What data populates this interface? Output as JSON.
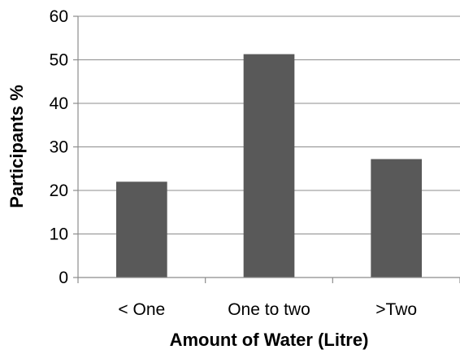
{
  "chart_data": {
    "type": "bar",
    "title": "",
    "xlabel": "Amount of Water (Litre)",
    "ylabel": "Participants %",
    "categories": [
      "< One",
      "One to two",
      ">Two"
    ],
    "values": [
      22,
      51.3,
      27.2
    ],
    "ylim": [
      0,
      60
    ],
    "yticks": [
      0,
      10,
      20,
      30,
      40,
      50,
      60
    ],
    "grid": true,
    "legend": "none",
    "bar_color": "#595959"
  }
}
